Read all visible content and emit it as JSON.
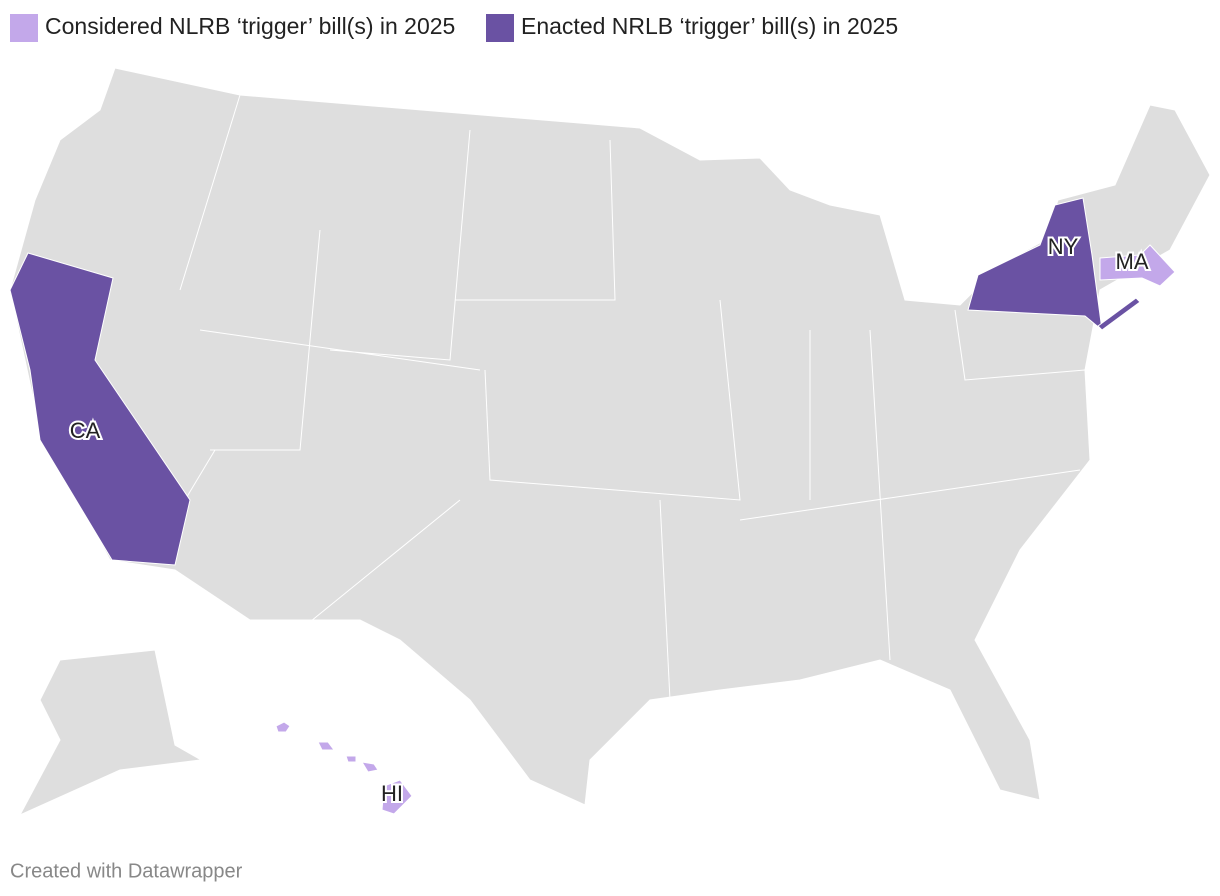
{
  "legend": [
    {
      "label": "Considered NLRB ‘trigger’ bill(s) in 2025",
      "color": "#c3a8ea"
    },
    {
      "label": "Enacted NRLB ‘trigger’ bill(s) in 2025",
      "color": "#6a52a3"
    }
  ],
  "states": [
    {
      "label": "CA",
      "status": 1
    },
    {
      "label": "NY",
      "status": 1
    },
    {
      "label": "MA",
      "status": 0
    },
    {
      "label": "HI",
      "status": 0
    }
  ],
  "footer": "Created with Datawrapper"
}
